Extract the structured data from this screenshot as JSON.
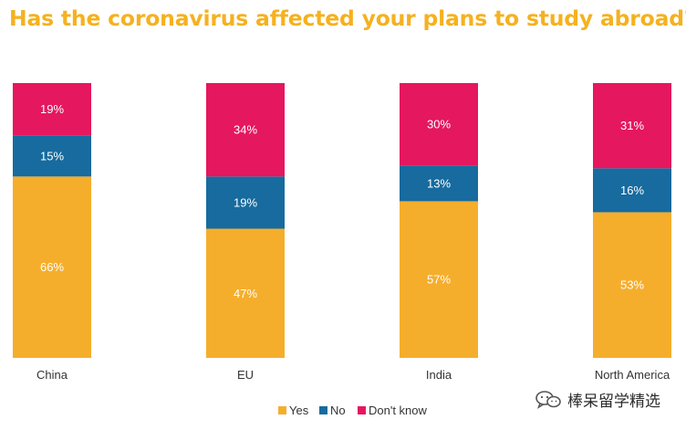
{
  "chart_data": {
    "type": "bar",
    "stacked": true,
    "title": "Has the coronavirus affected your plans to study abroad?",
    "categories": [
      "China",
      "EU",
      "India",
      "North America"
    ],
    "series": [
      {
        "name": "Yes",
        "values": [
          66,
          47,
          57,
          53
        ],
        "color": "#f5ae2c"
      },
      {
        "name": "No",
        "values": [
          15,
          19,
          13,
          16
        ],
        "color": "#176b9e"
      },
      {
        "name": "Don't know",
        "values": [
          19,
          34,
          30,
          31
        ],
        "color": "#e5175f"
      }
    ],
    "value_suffix": "%",
    "ylim": [
      0,
      100
    ],
    "grid": false,
    "legend_position": "bottom-center"
  },
  "watermark": {
    "text": "棒呆留学精选",
    "icon": "wechat-icon"
  }
}
